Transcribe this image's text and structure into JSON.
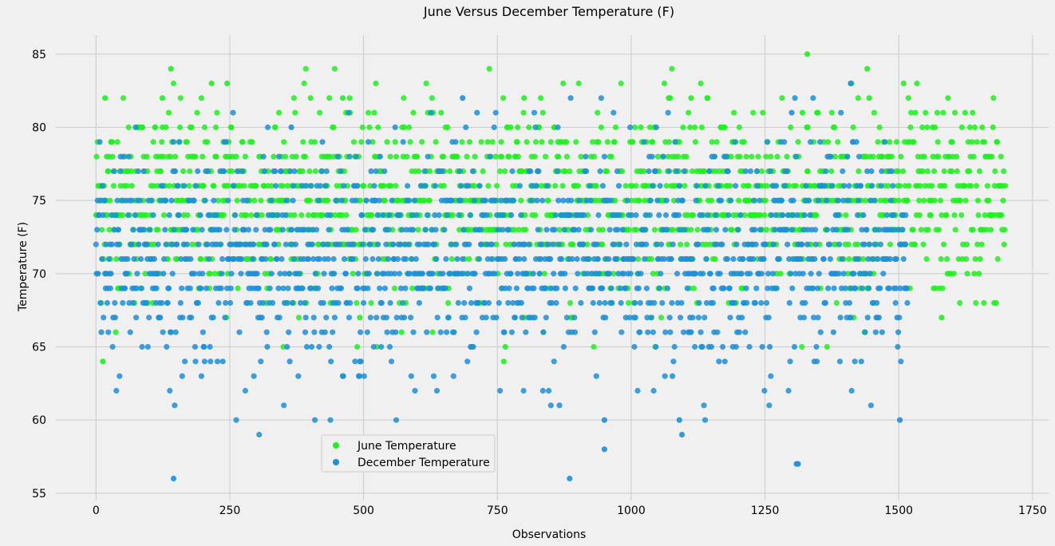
{
  "chart_data": {
    "type": "scatter",
    "title": "June Versus December Temperature (F)",
    "xlabel": "Observations",
    "ylabel": "Temperature (F)",
    "xlim": [
      -75,
      1780
    ],
    "ylim": [
      54.5,
      86.3
    ],
    "xticks": [
      0,
      250,
      500,
      750,
      1000,
      1250,
      1500,
      1750
    ],
    "yticks": [
      55,
      60,
      65,
      70,
      75,
      80,
      85
    ],
    "grid": true,
    "legend_position": "bottom-center",
    "series": [
      {
        "name": "June Temperature",
        "color": "#22ee22",
        "n": 1700,
        "x_start": 0,
        "mean": 74.9,
        "sd": 3.3,
        "min": 64,
        "max": 85,
        "notable_points": [
          [
            1329,
            85
          ],
          [
            140,
            84
          ],
          [
            1441,
            84
          ],
          [
            216,
            83
          ],
          [
            245,
            83
          ],
          [
            124,
            82
          ],
          [
            17,
            82
          ],
          [
            461,
            82
          ],
          [
            800,
            82
          ],
          [
            1070,
            82
          ],
          [
            1112,
            82
          ],
          [
            1445,
            82
          ],
          [
            1320,
            81
          ],
          [
            1330,
            80
          ],
          [
            493,
            67
          ],
          [
            800,
            67
          ],
          [
            1580,
            67
          ],
          [
            765,
            65
          ],
          [
            762,
            64
          ],
          [
            13,
            64
          ]
        ]
      },
      {
        "name": "December Temperature",
        "color": "#1f8fd6",
        "n": 1517,
        "x_start": 0,
        "mean": 71.0,
        "sd": 3.8,
        "min": 56,
        "max": 83,
        "notable_points": [
          [
            145,
            56
          ],
          [
            885,
            56
          ],
          [
            1309,
            57
          ],
          [
            1312,
            57
          ],
          [
            950,
            58
          ],
          [
            1095,
            59
          ],
          [
            950,
            60
          ],
          [
            1090,
            60
          ],
          [
            1502,
            60
          ],
          [
            1410,
            83
          ],
          [
            685,
            82
          ],
          [
            365,
            80
          ],
          [
            1300,
            81
          ]
        ]
      }
    ]
  }
}
